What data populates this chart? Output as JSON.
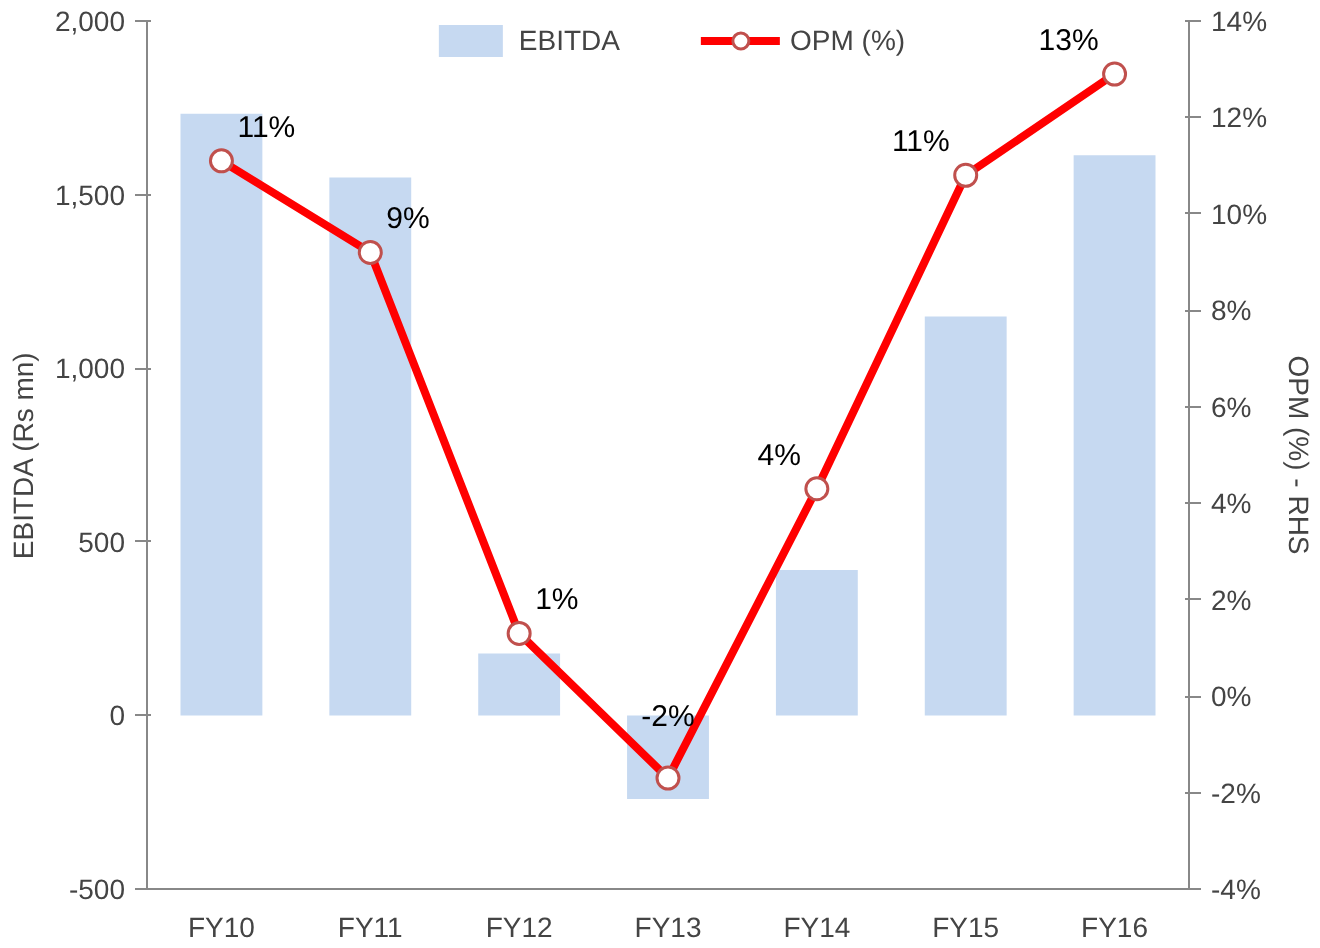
{
  "chart_data": {
    "type": "bar",
    "categories": [
      "FY10",
      "FY11",
      "FY12",
      "FY13",
      "FY14",
      "FY15",
      "FY16"
    ],
    "ylabel": "EBITDA (Rs mn)",
    "y2label": "OPM (%) - RHS",
    "ylim": [
      -500,
      2000
    ],
    "yticks": [
      {
        "value": -500,
        "label": "-500"
      },
      {
        "value": 0,
        "label": "0"
      },
      {
        "value": 500,
        "label": "500"
      },
      {
        "value": 1000,
        "label": "1,000"
      },
      {
        "value": 1500,
        "label": "1,500"
      },
      {
        "value": 2000,
        "label": "2,000"
      }
    ],
    "y2lim": [
      -4,
      14
    ],
    "y2ticks": [
      {
        "value": -4,
        "label": "-4%"
      },
      {
        "value": -2,
        "label": "-2%"
      },
      {
        "value": 0,
        "label": "0%"
      },
      {
        "value": 2,
        "label": "2%"
      },
      {
        "value": 4,
        "label": "4%"
      },
      {
        "value": 6,
        "label": "6%"
      },
      {
        "value": 8,
        "label": "8%"
      },
      {
        "value": 10,
        "label": "10%"
      },
      {
        "value": 12,
        "label": "12%"
      },
      {
        "value": 14,
        "label": "14%"
      }
    ],
    "series": [
      {
        "name": "EBITDA",
        "color": "#c6d9f1",
        "values": [
          1733,
          1549,
          178,
          -241,
          419,
          1149,
          1613
        ]
      },
      {
        "name": "OPM (%)",
        "type": "line",
        "axis": "y2",
        "color": "#ff0000",
        "marker": "circle",
        "values": [
          11.1,
          9.2,
          1.3,
          -1.7,
          4.3,
          10.8,
          12.9
        ],
        "value_labels": [
          "11%",
          "9%",
          "1%",
          "-2%",
          "4%",
          "11%",
          "13%"
        ]
      }
    ],
    "legend": "top",
    "grid": false
  }
}
